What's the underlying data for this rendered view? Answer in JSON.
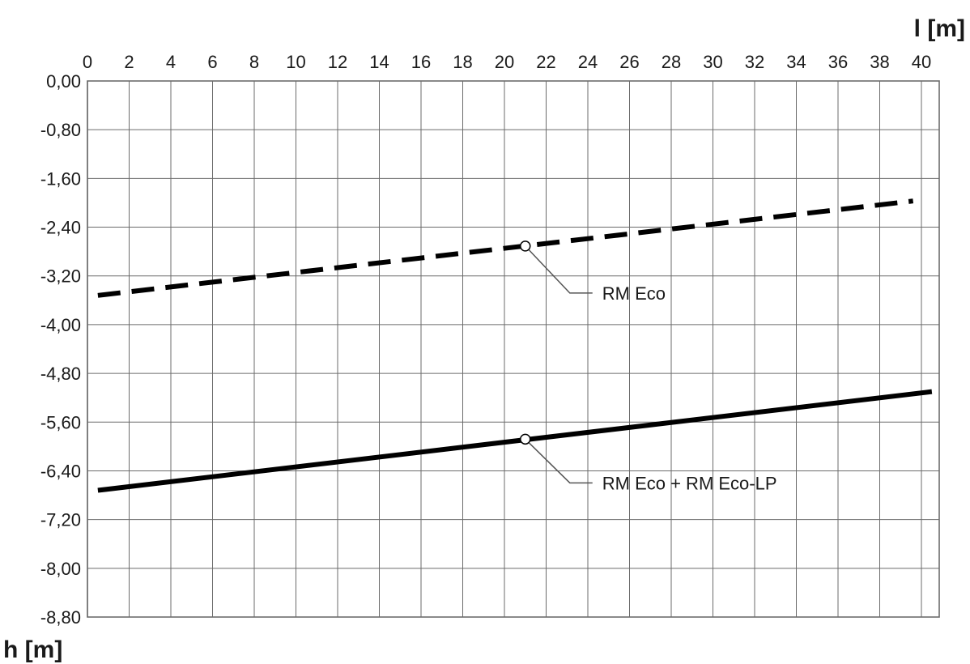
{
  "chart_data": {
    "type": "line",
    "xlabel": "l [m]",
    "ylabel": "h [m]",
    "xlim": [
      0,
      40
    ],
    "ylim": [
      -8.8,
      0.0
    ],
    "x_ticks": [
      "0",
      "2",
      "4",
      "6",
      "8",
      "10",
      "12",
      "14",
      "16",
      "18",
      "20",
      "22",
      "24",
      "26",
      "28",
      "30",
      "32",
      "34",
      "36",
      "38",
      "40"
    ],
    "y_ticks": [
      "0,00",
      "-0,80",
      "-1,60",
      "-2,40",
      "-3,20",
      "-4,00",
      "-4,80",
      "-5,60",
      "-6,40",
      "-7,20",
      "-8,00",
      "-8,80"
    ],
    "grid": true,
    "series": [
      {
        "name": "RM Eco",
        "style": "dashed",
        "color": "#000000",
        "x": [
          0.5,
          39.6
        ],
        "y": [
          -3.52,
          -1.97
        ],
        "marker_x": 21.0,
        "marker_y": -2.71
      },
      {
        "name": "RM Eco + RM Eco-LP",
        "style": "solid",
        "color": "#000000",
        "x": [
          0.5,
          40.5
        ],
        "y": [
          -6.72,
          -5.1
        ],
        "marker_x": 21.0,
        "marker_y": -5.88
      }
    ],
    "annotations": [
      "RM Eco",
      "RM Eco + RM Eco-LP"
    ]
  }
}
